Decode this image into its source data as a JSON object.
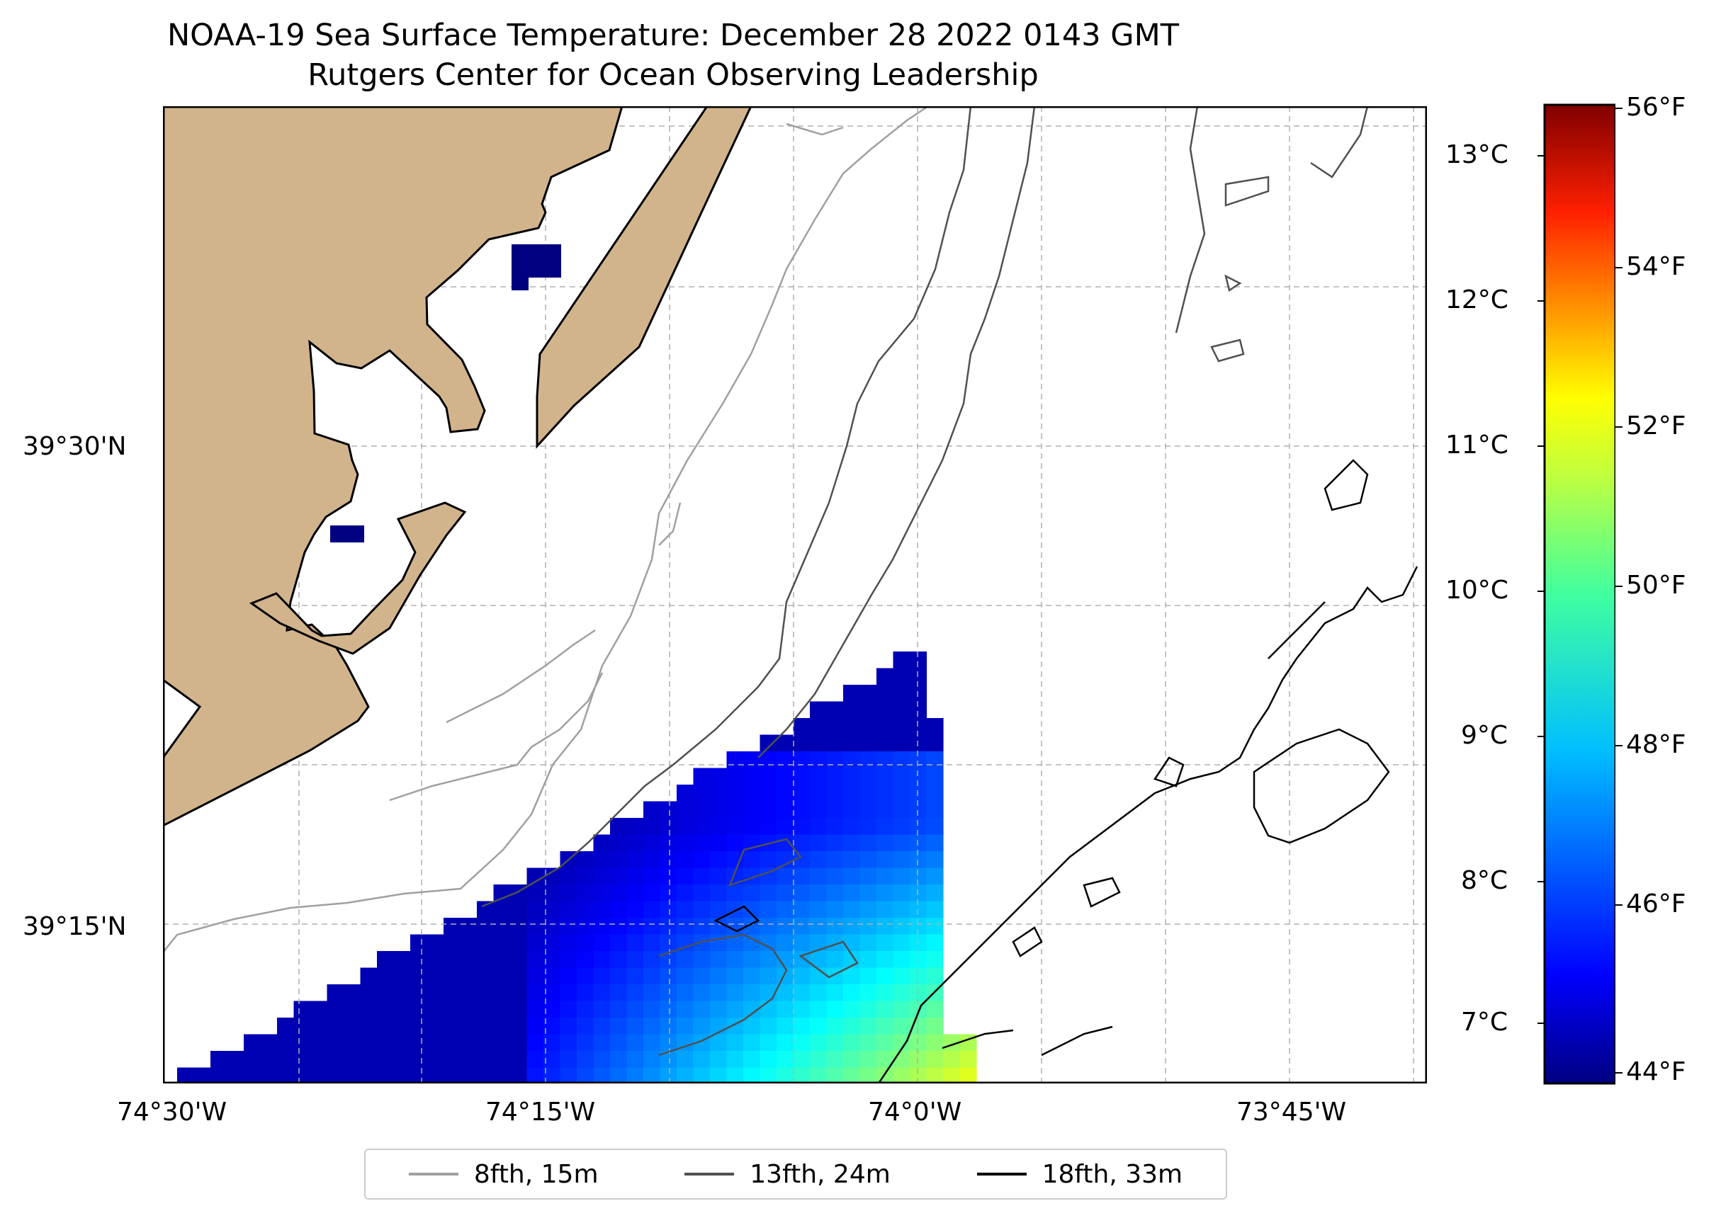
{
  "title": {
    "line1": "NOAA-19 Sea Surface Temperature: December 28 2022 0143 GMT",
    "line2": "Rutgers Center for Ocean Observing Leadership"
  },
  "axes": {
    "x_ticks": [
      "74°30'W",
      "74°15'W",
      "74°0'W",
      "73°45'W"
    ],
    "y_ticks": [
      "39°30'N",
      "39°15'N"
    ]
  },
  "colorbar": {
    "celsius_ticks": [
      "13°C",
      "12°C",
      "11°C",
      "10°C",
      "9°C",
      "8°C",
      "7°C"
    ],
    "fahrenheit_ticks": [
      "56°F",
      "54°F",
      "52°F",
      "50°F",
      "48°F",
      "46°F",
      "44°F"
    ],
    "colormap": "jet",
    "range_f": [
      43.8,
      56.2
    ]
  },
  "colors": {
    "land": "#d2b48c",
    "missing_sst": "#000080",
    "contour_8fth": "#a0a0a0",
    "contour_13fth": "#505050",
    "contour_18fth": "#000000"
  },
  "legend": {
    "items": [
      {
        "label": "8fth, 15m",
        "color": "#a0a0a0"
      },
      {
        "label": "13fth, 24m",
        "color": "#505050"
      },
      {
        "label": "18fth, 33m",
        "color": "#000000"
      }
    ]
  }
}
